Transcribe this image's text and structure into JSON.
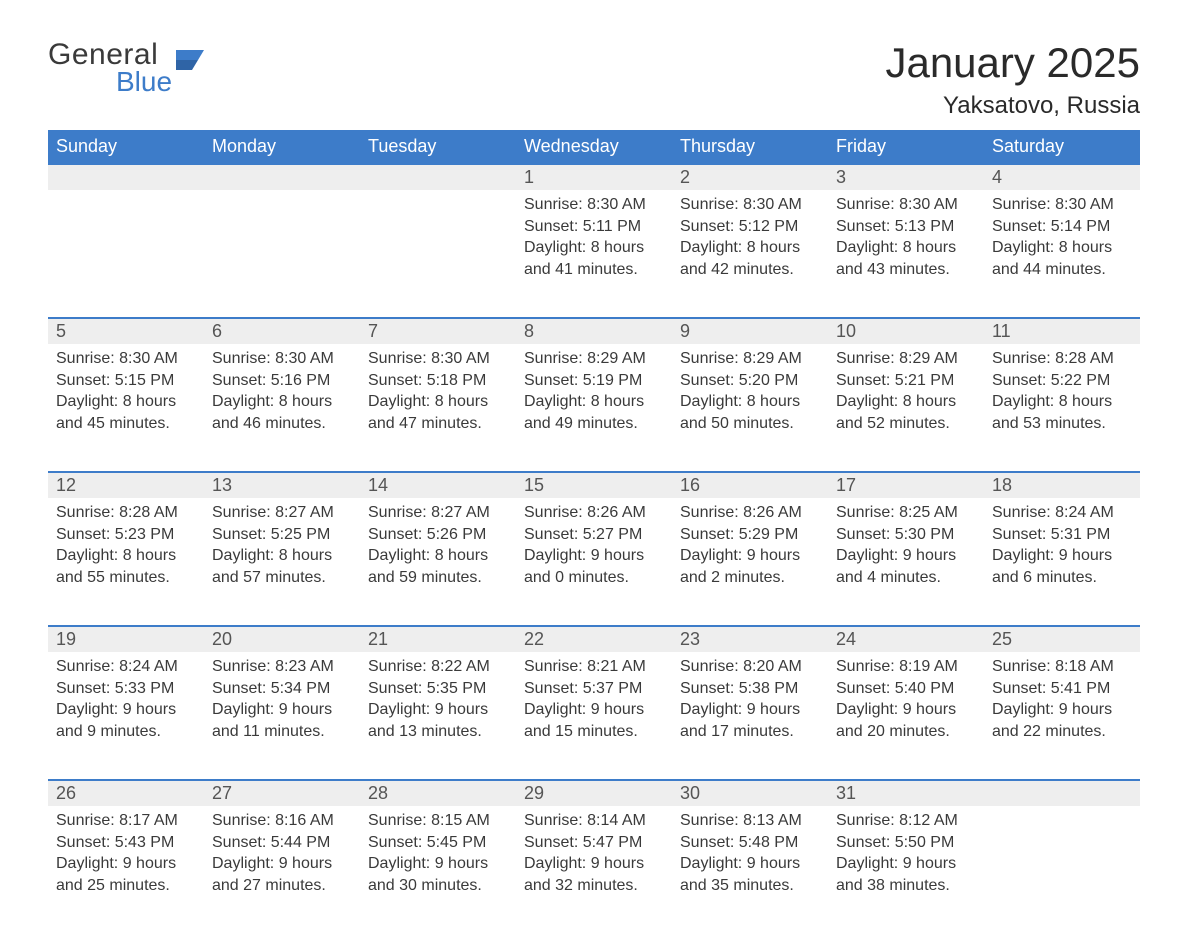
{
  "brand": {
    "general": "General",
    "blue": "Blue"
  },
  "colors": {
    "header_bg": "#3d7cc9",
    "header_text": "#ffffff",
    "daynum_bg": "#eeeeee",
    "daynum_border": "#3d7cc9",
    "body_text": "#3a3a3a",
    "page_bg": "#ffffff"
  },
  "title": "January 2025",
  "location": "Yaksatovo, Russia",
  "weekdays": [
    "Sunday",
    "Monday",
    "Tuesday",
    "Wednesday",
    "Thursday",
    "Friday",
    "Saturday"
  ],
  "weeks": [
    [
      null,
      null,
      null,
      {
        "n": "1",
        "sunrise": "8:30 AM",
        "sunset": "5:11 PM",
        "dl1": "Daylight: 8 hours",
        "dl2": "and 41 minutes."
      },
      {
        "n": "2",
        "sunrise": "8:30 AM",
        "sunset": "5:12 PM",
        "dl1": "Daylight: 8 hours",
        "dl2": "and 42 minutes."
      },
      {
        "n": "3",
        "sunrise": "8:30 AM",
        "sunset": "5:13 PM",
        "dl1": "Daylight: 8 hours",
        "dl2": "and 43 minutes."
      },
      {
        "n": "4",
        "sunrise": "8:30 AM",
        "sunset": "5:14 PM",
        "dl1": "Daylight: 8 hours",
        "dl2": "and 44 minutes."
      }
    ],
    [
      {
        "n": "5",
        "sunrise": "8:30 AM",
        "sunset": "5:15 PM",
        "dl1": "Daylight: 8 hours",
        "dl2": "and 45 minutes."
      },
      {
        "n": "6",
        "sunrise": "8:30 AM",
        "sunset": "5:16 PM",
        "dl1": "Daylight: 8 hours",
        "dl2": "and 46 minutes."
      },
      {
        "n": "7",
        "sunrise": "8:30 AM",
        "sunset": "5:18 PM",
        "dl1": "Daylight: 8 hours",
        "dl2": "and 47 minutes."
      },
      {
        "n": "8",
        "sunrise": "8:29 AM",
        "sunset": "5:19 PM",
        "dl1": "Daylight: 8 hours",
        "dl2": "and 49 minutes."
      },
      {
        "n": "9",
        "sunrise": "8:29 AM",
        "sunset": "5:20 PM",
        "dl1": "Daylight: 8 hours",
        "dl2": "and 50 minutes."
      },
      {
        "n": "10",
        "sunrise": "8:29 AM",
        "sunset": "5:21 PM",
        "dl1": "Daylight: 8 hours",
        "dl2": "and 52 minutes."
      },
      {
        "n": "11",
        "sunrise": "8:28 AM",
        "sunset": "5:22 PM",
        "dl1": "Daylight: 8 hours",
        "dl2": "and 53 minutes."
      }
    ],
    [
      {
        "n": "12",
        "sunrise": "8:28 AM",
        "sunset": "5:23 PM",
        "dl1": "Daylight: 8 hours",
        "dl2": "and 55 minutes."
      },
      {
        "n": "13",
        "sunrise": "8:27 AM",
        "sunset": "5:25 PM",
        "dl1": "Daylight: 8 hours",
        "dl2": "and 57 minutes."
      },
      {
        "n": "14",
        "sunrise": "8:27 AM",
        "sunset": "5:26 PM",
        "dl1": "Daylight: 8 hours",
        "dl2": "and 59 minutes."
      },
      {
        "n": "15",
        "sunrise": "8:26 AM",
        "sunset": "5:27 PM",
        "dl1": "Daylight: 9 hours",
        "dl2": "and 0 minutes."
      },
      {
        "n": "16",
        "sunrise": "8:26 AM",
        "sunset": "5:29 PM",
        "dl1": "Daylight: 9 hours",
        "dl2": "and 2 minutes."
      },
      {
        "n": "17",
        "sunrise": "8:25 AM",
        "sunset": "5:30 PM",
        "dl1": "Daylight: 9 hours",
        "dl2": "and 4 minutes."
      },
      {
        "n": "18",
        "sunrise": "8:24 AM",
        "sunset": "5:31 PM",
        "dl1": "Daylight: 9 hours",
        "dl2": "and 6 minutes."
      }
    ],
    [
      {
        "n": "19",
        "sunrise": "8:24 AM",
        "sunset": "5:33 PM",
        "dl1": "Daylight: 9 hours",
        "dl2": "and 9 minutes."
      },
      {
        "n": "20",
        "sunrise": "8:23 AM",
        "sunset": "5:34 PM",
        "dl1": "Daylight: 9 hours",
        "dl2": "and 11 minutes."
      },
      {
        "n": "21",
        "sunrise": "8:22 AM",
        "sunset": "5:35 PM",
        "dl1": "Daylight: 9 hours",
        "dl2": "and 13 minutes."
      },
      {
        "n": "22",
        "sunrise": "8:21 AM",
        "sunset": "5:37 PM",
        "dl1": "Daylight: 9 hours",
        "dl2": "and 15 minutes."
      },
      {
        "n": "23",
        "sunrise": "8:20 AM",
        "sunset": "5:38 PM",
        "dl1": "Daylight: 9 hours",
        "dl2": "and 17 minutes."
      },
      {
        "n": "24",
        "sunrise": "8:19 AM",
        "sunset": "5:40 PM",
        "dl1": "Daylight: 9 hours",
        "dl2": "and 20 minutes."
      },
      {
        "n": "25",
        "sunrise": "8:18 AM",
        "sunset": "5:41 PM",
        "dl1": "Daylight: 9 hours",
        "dl2": "and 22 minutes."
      }
    ],
    [
      {
        "n": "26",
        "sunrise": "8:17 AM",
        "sunset": "5:43 PM",
        "dl1": "Daylight: 9 hours",
        "dl2": "and 25 minutes."
      },
      {
        "n": "27",
        "sunrise": "8:16 AM",
        "sunset": "5:44 PM",
        "dl1": "Daylight: 9 hours",
        "dl2": "and 27 minutes."
      },
      {
        "n": "28",
        "sunrise": "8:15 AM",
        "sunset": "5:45 PM",
        "dl1": "Daylight: 9 hours",
        "dl2": "and 30 minutes."
      },
      {
        "n": "29",
        "sunrise": "8:14 AM",
        "sunset": "5:47 PM",
        "dl1": "Daylight: 9 hours",
        "dl2": "and 32 minutes."
      },
      {
        "n": "30",
        "sunrise": "8:13 AM",
        "sunset": "5:48 PM",
        "dl1": "Daylight: 9 hours",
        "dl2": "and 35 minutes."
      },
      {
        "n": "31",
        "sunrise": "8:12 AM",
        "sunset": "5:50 PM",
        "dl1": "Daylight: 9 hours",
        "dl2": "and 38 minutes."
      },
      null
    ]
  ],
  "labels": {
    "sunrise_prefix": "Sunrise: ",
    "sunset_prefix": "Sunset: "
  }
}
